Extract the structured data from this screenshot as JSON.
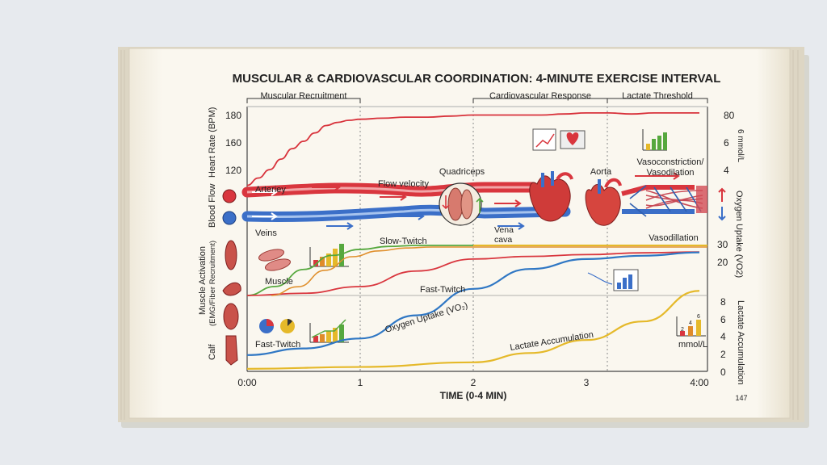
{
  "page": {
    "title": "MUSCULAR & CARDIOVASCULAR COORDINATION: 4-MINUTE EXERCISE INTERVAL",
    "page_number": "147"
  },
  "phases": [
    "Muscular Recruitment",
    "Cardiovascular Response",
    "Lactate Threshold"
  ],
  "left_axes": {
    "heart_rate_label": "Heart Rate (BPM)",
    "heart_rate_ticks": [
      "180",
      "160",
      "120"
    ],
    "blood_flow_label": "Blood Flow",
    "muscle_activation_label": "Muscle Activation",
    "muscle_activation_sub": "(EMG/Fiber Recruitment)",
    "calf_label": "Calf"
  },
  "right_axes": {
    "top_ticks": [
      "80",
      "6",
      "4"
    ],
    "top_unit": "6 mmol/L",
    "oxygen_label": "Oxygen Uptake (VO2)",
    "oxygen_ticks": [
      "30",
      "20"
    ],
    "lactate_label": "Lactate Accumulation",
    "lactate_ticks": [
      "8",
      "6",
      "4",
      "2",
      "0"
    ]
  },
  "x_axis": {
    "label": "TIME (0-4 MIN)",
    "ticks": [
      "0:00",
      "1",
      "2",
      "3",
      "4:00"
    ]
  },
  "annotations": {
    "artery": "Arteriey",
    "veins": "Veins",
    "flow_velocity": "Flow velocity",
    "quadriceps": "Quadriceps",
    "vena_cava_1": "Vena",
    "vena_cava_2": "cava",
    "aorta": "Aorta",
    "vasoconstriction_1": "Vasoconstriction/",
    "vasoconstriction_2": "Vasodilation",
    "vasodilation": "Vasodillation",
    "slow_twitch": "Slow-Twitch",
    "fast_twitch_1": "Fast-Twitch",
    "fast_twitch_2": "Fast-Twitch",
    "muscle": "Muscle",
    "oxygen_uptake": "Oxygen Uptake (VO₂)",
    "lactate_accumulation": "Lactate Accumulation",
    "mmol": "mmol/L",
    "mini_bar_labels": [
      "2",
      "4",
      "6"
    ]
  },
  "colors": {
    "heart_rate": "#d8323b",
    "oxygen": "#2f77c4",
    "lactate": "#e5b92a",
    "slow_twitch": "#56a83e",
    "artery": "#d9363e",
    "vein": "#3b6fc8",
    "page": "#f8f5ec"
  },
  "chart_data": {
    "type": "line",
    "x_unit": "min",
    "x_range": [
      0,
      4
    ],
    "series": [
      {
        "name": "Heart Rate (BPM)",
        "x": [
          0,
          0.1,
          0.2,
          0.3,
          0.4,
          0.5,
          0.6,
          0.7,
          0.8,
          0.9,
          1.0,
          1.2,
          1.4,
          1.6,
          1.8,
          2.0,
          2.2,
          2.4,
          2.6,
          2.8,
          3.0,
          3.2,
          3.4,
          3.6,
          3.8,
          4.0
        ],
        "y": [
          108,
          115,
          123,
          133,
          143,
          150,
          158,
          165,
          168,
          170,
          171,
          172,
          173,
          173,
          174,
          175,
          175,
          175,
          175,
          176,
          177,
          177,
          176,
          177,
          177,
          177
        ]
      },
      {
        "name": "Slow-Twitch",
        "x": [
          0,
          0.25,
          0.5,
          0.75,
          1.0,
          1.25,
          1.5,
          1.75,
          2.0,
          3.0,
          4.0
        ],
        "y": [
          0,
          18,
          52,
          80,
          92,
          98,
          100,
          100,
          100,
          100,
          100
        ]
      },
      {
        "name": "Fast-Twitch",
        "x": [
          0,
          0.5,
          1.0,
          1.5,
          2.0,
          2.5,
          3.0,
          3.5,
          4.0
        ],
        "y": [
          0,
          5,
          20,
          55,
          82,
          88,
          92,
          96,
          98
        ]
      },
      {
        "name": "Oxygen Uptake (VO₂)",
        "x": [
          0,
          0.5,
          1.0,
          1.5,
          2.0,
          2.5,
          3.0,
          3.5,
          4.0
        ],
        "y": [
          2,
          4,
          7,
          14,
          22,
          28,
          31,
          32,
          33
        ]
      },
      {
        "name": "Lactate Accumulation",
        "x": [
          0,
          1.0,
          2.0,
          2.5,
          3.0,
          3.5,
          4.0
        ],
        "y": [
          0.1,
          0.3,
          0.8,
          1.8,
          3.2,
          5.2,
          8.5
        ]
      }
    ]
  }
}
